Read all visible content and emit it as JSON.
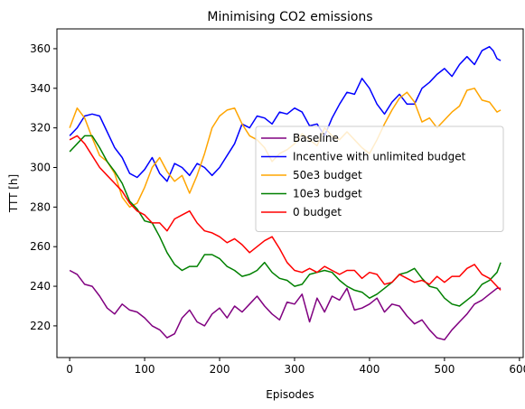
{
  "chart_data": {
    "type": "line",
    "title": "Minimising CO2 emissions",
    "xlabel": "Episodes",
    "ylabel": "TTT [h]",
    "xlim": [
      -17,
      605
    ],
    "ylim": [
      204,
      370
    ],
    "xticks": [
      0,
      100,
      200,
      300,
      400,
      500,
      600
    ],
    "yticks": [
      220,
      240,
      260,
      280,
      300,
      320,
      340,
      360
    ],
    "grid": false,
    "legend_position": "center-right",
    "series": [
      {
        "name": "Baseline",
        "color": "#800080",
        "points": [
          [
            0,
            248
          ],
          [
            10,
            246
          ],
          [
            20,
            241
          ],
          [
            30,
            240
          ],
          [
            40,
            235
          ],
          [
            50,
            229
          ],
          [
            60,
            226
          ],
          [
            70,
            231
          ],
          [
            80,
            228
          ],
          [
            90,
            227
          ],
          [
            100,
            224
          ],
          [
            110,
            220
          ],
          [
            120,
            218
          ],
          [
            130,
            214
          ],
          [
            140,
            216
          ],
          [
            150,
            224
          ],
          [
            160,
            228
          ],
          [
            170,
            222
          ],
          [
            180,
            220
          ],
          [
            190,
            226
          ],
          [
            200,
            229
          ],
          [
            210,
            224
          ],
          [
            220,
            230
          ],
          [
            230,
            227
          ],
          [
            240,
            231
          ],
          [
            250,
            235
          ],
          [
            260,
            230
          ],
          [
            270,
            226
          ],
          [
            280,
            223
          ],
          [
            290,
            232
          ],
          [
            300,
            231
          ],
          [
            310,
            236
          ],
          [
            320,
            222
          ],
          [
            330,
            234
          ],
          [
            340,
            227
          ],
          [
            350,
            235
          ],
          [
            360,
            233
          ],
          [
            370,
            239
          ],
          [
            380,
            228
          ],
          [
            390,
            229
          ],
          [
            400,
            231
          ],
          [
            410,
            234
          ],
          [
            420,
            227
          ],
          [
            430,
            231
          ],
          [
            440,
            230
          ],
          [
            450,
            225
          ],
          [
            460,
            221
          ],
          [
            470,
            223
          ],
          [
            480,
            218
          ],
          [
            490,
            214
          ],
          [
            500,
            213
          ],
          [
            510,
            218
          ],
          [
            520,
            222
          ],
          [
            530,
            226
          ],
          [
            540,
            231
          ],
          [
            550,
            233
          ],
          [
            560,
            236
          ],
          [
            570,
            239
          ],
          [
            575,
            239
          ]
        ]
      },
      {
        "name": "Incentive with unlimited budget",
        "color": "#0000ff",
        "points": [
          [
            0,
            316
          ],
          [
            10,
            320
          ],
          [
            20,
            326
          ],
          [
            30,
            327
          ],
          [
            40,
            326
          ],
          [
            50,
            318
          ],
          [
            60,
            310
          ],
          [
            70,
            305
          ],
          [
            80,
            297
          ],
          [
            90,
            295
          ],
          [
            100,
            299
          ],
          [
            110,
            305
          ],
          [
            120,
            297
          ],
          [
            130,
            293
          ],
          [
            140,
            302
          ],
          [
            150,
            300
          ],
          [
            160,
            296
          ],
          [
            170,
            302
          ],
          [
            180,
            300
          ],
          [
            190,
            296
          ],
          [
            200,
            300
          ],
          [
            210,
            306
          ],
          [
            220,
            312
          ],
          [
            230,
            322
          ],
          [
            240,
            320
          ],
          [
            250,
            326
          ],
          [
            260,
            325
          ],
          [
            270,
            322
          ],
          [
            280,
            328
          ],
          [
            290,
            327
          ],
          [
            300,
            330
          ],
          [
            310,
            328
          ],
          [
            320,
            321
          ],
          [
            330,
            322
          ],
          [
            340,
            316
          ],
          [
            350,
            325
          ],
          [
            360,
            332
          ],
          [
            370,
            338
          ],
          [
            380,
            337
          ],
          [
            390,
            345
          ],
          [
            400,
            340
          ],
          [
            410,
            332
          ],
          [
            420,
            327
          ],
          [
            430,
            333
          ],
          [
            440,
            337
          ],
          [
            450,
            332
          ],
          [
            460,
            332
          ],
          [
            470,
            340
          ],
          [
            480,
            343
          ],
          [
            490,
            347
          ],
          [
            500,
            350
          ],
          [
            510,
            346
          ],
          [
            520,
            352
          ],
          [
            530,
            356
          ],
          [
            540,
            352
          ],
          [
            550,
            359
          ],
          [
            560,
            361
          ],
          [
            565,
            359
          ],
          [
            570,
            355
          ],
          [
            575,
            354
          ]
        ]
      },
      {
        "name": "50e3 budget",
        "color": "#ffa500",
        "points": [
          [
            0,
            320
          ],
          [
            10,
            330
          ],
          [
            20,
            325
          ],
          [
            30,
            315
          ],
          [
            40,
            306
          ],
          [
            50,
            303
          ],
          [
            60,
            297
          ],
          [
            70,
            285
          ],
          [
            80,
            280
          ],
          [
            90,
            282
          ],
          [
            100,
            290
          ],
          [
            110,
            300
          ],
          [
            120,
            305
          ],
          [
            130,
            298
          ],
          [
            140,
            293
          ],
          [
            150,
            296
          ],
          [
            160,
            287
          ],
          [
            170,
            296
          ],
          [
            180,
            307
          ],
          [
            190,
            320
          ],
          [
            200,
            326
          ],
          [
            210,
            329
          ],
          [
            220,
            330
          ],
          [
            230,
            322
          ],
          [
            240,
            316
          ],
          [
            250,
            314
          ],
          [
            260,
            310
          ],
          [
            270,
            303
          ],
          [
            280,
            307
          ],
          [
            290,
            309
          ],
          [
            300,
            312
          ],
          [
            310,
            317
          ],
          [
            320,
            314
          ],
          [
            330,
            311
          ],
          [
            340,
            320
          ],
          [
            350,
            316
          ],
          [
            360,
            314
          ],
          [
            370,
            318
          ],
          [
            380,
            314
          ],
          [
            390,
            310
          ],
          [
            400,
            307
          ],
          [
            410,
            314
          ],
          [
            420,
            322
          ],
          [
            430,
            329
          ],
          [
            440,
            335
          ],
          [
            450,
            338
          ],
          [
            460,
            333
          ],
          [
            470,
            323
          ],
          [
            480,
            325
          ],
          [
            490,
            320
          ],
          [
            500,
            324
          ],
          [
            510,
            328
          ],
          [
            520,
            331
          ],
          [
            530,
            339
          ],
          [
            540,
            340
          ],
          [
            550,
            334
          ],
          [
            560,
            333
          ],
          [
            570,
            328
          ],
          [
            575,
            329
          ]
        ]
      },
      {
        "name": "10e3 budget",
        "color": "#008000",
        "points": [
          [
            0,
            308
          ],
          [
            10,
            312
          ],
          [
            20,
            316
          ],
          [
            30,
            316
          ],
          [
            40,
            310
          ],
          [
            50,
            303
          ],
          [
            60,
            298
          ],
          [
            70,
            292
          ],
          [
            80,
            283
          ],
          [
            90,
            279
          ],
          [
            100,
            273
          ],
          [
            110,
            272
          ],
          [
            120,
            265
          ],
          [
            130,
            257
          ],
          [
            140,
            251
          ],
          [
            150,
            248
          ],
          [
            160,
            250
          ],
          [
            170,
            250
          ],
          [
            180,
            256
          ],
          [
            190,
            256
          ],
          [
            200,
            254
          ],
          [
            210,
            250
          ],
          [
            220,
            248
          ],
          [
            230,
            245
          ],
          [
            240,
            246
          ],
          [
            250,
            248
          ],
          [
            260,
            252
          ],
          [
            270,
            247
          ],
          [
            280,
            244
          ],
          [
            290,
            243
          ],
          [
            300,
            240
          ],
          [
            310,
            241
          ],
          [
            320,
            246
          ],
          [
            330,
            247
          ],
          [
            340,
            248
          ],
          [
            350,
            247
          ],
          [
            360,
            243
          ],
          [
            370,
            240
          ],
          [
            380,
            238
          ],
          [
            390,
            237
          ],
          [
            400,
            234
          ],
          [
            410,
            236
          ],
          [
            420,
            239
          ],
          [
            430,
            242
          ],
          [
            440,
            246
          ],
          [
            450,
            247
          ],
          [
            460,
            249
          ],
          [
            470,
            244
          ],
          [
            480,
            240
          ],
          [
            490,
            239
          ],
          [
            500,
            234
          ],
          [
            510,
            231
          ],
          [
            520,
            230
          ],
          [
            530,
            233
          ],
          [
            540,
            236
          ],
          [
            550,
            241
          ],
          [
            560,
            243
          ],
          [
            570,
            247
          ],
          [
            575,
            252
          ]
        ]
      },
      {
        "name": "0 budget",
        "color": "#ff0000",
        "points": [
          [
            0,
            314
          ],
          [
            10,
            316
          ],
          [
            20,
            312
          ],
          [
            30,
            306
          ],
          [
            40,
            300
          ],
          [
            50,
            296
          ],
          [
            60,
            292
          ],
          [
            70,
            288
          ],
          [
            80,
            282
          ],
          [
            90,
            278
          ],
          [
            100,
            276
          ],
          [
            110,
            272
          ],
          [
            120,
            272
          ],
          [
            130,
            268
          ],
          [
            140,
            274
          ],
          [
            150,
            276
          ],
          [
            160,
            278
          ],
          [
            170,
            272
          ],
          [
            180,
            268
          ],
          [
            190,
            267
          ],
          [
            200,
            265
          ],
          [
            210,
            262
          ],
          [
            220,
            264
          ],
          [
            230,
            261
          ],
          [
            240,
            257
          ],
          [
            250,
            260
          ],
          [
            260,
            263
          ],
          [
            270,
            265
          ],
          [
            280,
            259
          ],
          [
            290,
            252
          ],
          [
            300,
            248
          ],
          [
            310,
            247
          ],
          [
            320,
            249
          ],
          [
            330,
            247
          ],
          [
            340,
            250
          ],
          [
            350,
            248
          ],
          [
            360,
            246
          ],
          [
            370,
            248
          ],
          [
            380,
            248
          ],
          [
            390,
            244
          ],
          [
            400,
            247
          ],
          [
            410,
            246
          ],
          [
            420,
            241
          ],
          [
            430,
            242
          ],
          [
            440,
            246
          ],
          [
            450,
            244
          ],
          [
            460,
            242
          ],
          [
            470,
            243
          ],
          [
            480,
            241
          ],
          [
            490,
            245
          ],
          [
            500,
            242
          ],
          [
            510,
            245
          ],
          [
            520,
            245
          ],
          [
            530,
            249
          ],
          [
            540,
            251
          ],
          [
            550,
            246
          ],
          [
            560,
            244
          ],
          [
            570,
            240
          ],
          [
            575,
            238
          ]
        ]
      }
    ]
  }
}
